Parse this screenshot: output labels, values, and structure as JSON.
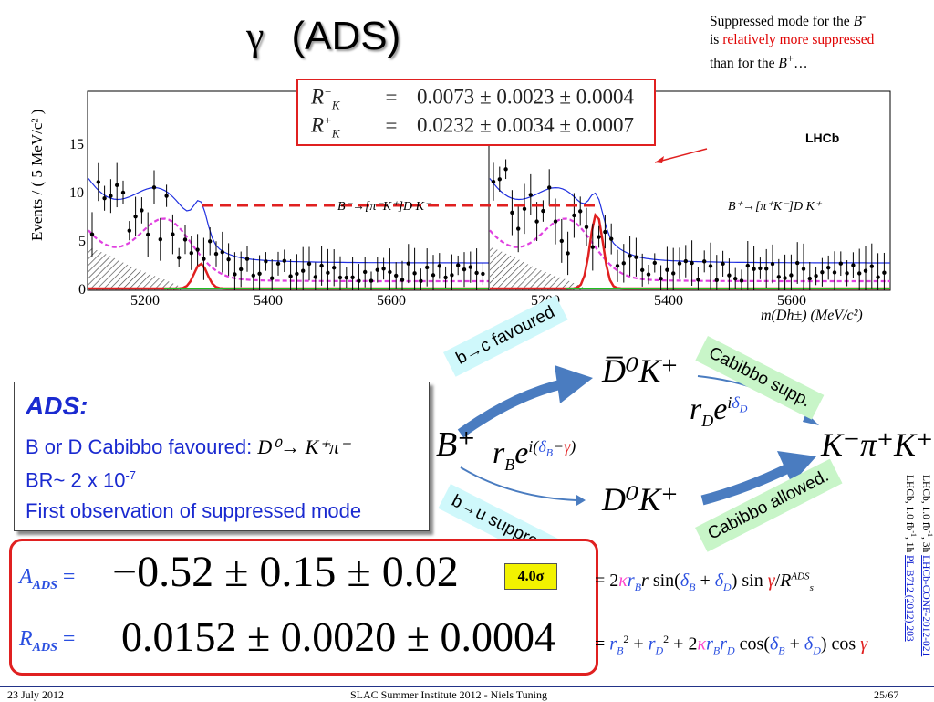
{
  "title": {
    "gamma": "γ",
    "text": "(ADS)"
  },
  "note": {
    "line1": "Suppressed mode for the ",
    "line1_var": "B",
    "line1_sup": "-",
    "line2_prefix": "is ",
    "line2_red": "relatively more suppressed",
    "line3_prefix": "than for the ",
    "line3_var": "B",
    "line3_sup": "+",
    "line3_suffix": "…"
  },
  "rk": {
    "row1_label": "R",
    "row1_sub": "K",
    "row1_sup": "−",
    "row1_eq": "=",
    "row1_value": "0.0073 ± 0.0023 ± 0.0004",
    "row2_label": "R",
    "row2_sub": "K",
    "row2_sup": "+",
    "row2_eq": "=",
    "row2_value": "0.0232 ± 0.0034 ± 0.0007"
  },
  "plot": {
    "ylabel": "Events / ( 5 MeV/c² )",
    "yticks": [
      "15",
      "10",
      "5",
      "0"
    ],
    "left_xticks": [
      "5200",
      "5400",
      "5600"
    ],
    "right_xticks": [
      "5200",
      "5400",
      "5600"
    ],
    "xlabel": "m(Dh±) (MeV/c²)",
    "left_decay": "B⁻→[π⁻K⁺]D K⁻",
    "right_decay": "B⁺→[π⁺K⁻]D K⁺",
    "lhcb": "LHCb",
    "colors": {
      "signal": "#e02020",
      "total": "#2030e0",
      "background": "#e040e0",
      "other": "#20c020"
    }
  },
  "diagram": {
    "favoured_tag": "b→c  favoured",
    "suppressed_tag": "b→u  suppressed",
    "cabibbo_supp_tag": "Cabibbo supp.",
    "cabibbo_allowed_tag": "Cabibbo allowed.",
    "dbar_k": "D̅⁰K⁺",
    "d_k": "D⁰K⁺",
    "b_plus": "B⁺",
    "final": "K⁻π⁺K⁺",
    "rd_amp": "r",
    "rd_sub": "D",
    "rd_e": "e",
    "rd_exp_i": "i",
    "rd_exp_delta": "δ",
    "rd_exp_sub": "D",
    "rb_amp": "r",
    "rb_sub": "B",
    "rb_e": "e",
    "rb_exp_i": "i(",
    "rb_exp_delta": "δ",
    "rb_exp_sub": "B",
    "rb_exp_minus": "−",
    "rb_exp_gamma": "γ",
    "rb_exp_close": ")"
  },
  "ads_box": {
    "heading": "ADS:",
    "line1": "B or D Cabibbo favoured: ",
    "line1_math": "D⁰→ K⁺π⁻",
    "line2": "BR~ 2 x 10",
    "line2_sup": "-7",
    "line3": "First observation of suppressed mode"
  },
  "formulas": {
    "a_label": "A",
    "a_sub": "ADS",
    "a_eq": "=",
    "a_value": "−0.52 ± 0.15 ± 0.02",
    "r_label": "R",
    "r_sub": "ADS",
    "r_eq": "=",
    "r_value": "0.0152 ± 0.0020 ± 0.0004",
    "sigma_badge": "4.0σ"
  },
  "formula_defs": {
    "a_def_prefix": "= 2",
    "a_def_kappa": "κ",
    "a_def_rb": "r",
    "a_def_rb_sub": "B",
    "a_def_r": "r",
    "a_def_sin": " sin(",
    "a_def_db": "δ",
    "a_def_db_sub": "B",
    "a_def_plus": " + ",
    "a_def_dd": "δ",
    "a_def_dd_sub": "D",
    "a_def_close": ") sin ",
    "a_def_gamma": "γ",
    "a_def_slash": "/",
    "a_def_R": "R",
    "a_def_R_sup": "ADS",
    "a_def_R_sub": "s",
    "r_def_prefix": "= ",
    "r_def_rb": "r",
    "r_def_rb_sub": "B",
    "r_def_sq": "2",
    "r_def_plus1": " + ",
    "r_def_rd": "r",
    "r_def_rd_sub": "D",
    "r_def_sq2": "2",
    "r_def_plus2": " + 2",
    "r_def_kappa": "κ",
    "r_def_rb2": "r",
    "r_def_rb2_sub": "B",
    "r_def_rd2": "r",
    "r_def_rd2_sub": "D",
    "r_def_cos": " cos(",
    "r_def_db": "δ",
    "r_def_db_sub": "B",
    "r_def_plus3": " + ",
    "r_def_dd": "δ",
    "r_def_dd_sub": "D",
    "r_def_close": ") cos ",
    "r_def_gamma": "γ"
  },
  "side_refs": {
    "ref1_prefix": "LHCb, 1.0 fb",
    "ref1_sup": "-1",
    "ref1_mid": ", 3h ",
    "ref1_link": "LHCb-CONF-2012-021",
    "ref2_prefix": "LHCb, 1.0 fb",
    "ref2_sup": "-1",
    "ref2_mid": ", 1h ",
    "ref2_link": "PL B712 (2012) 203"
  },
  "footer": {
    "date": "23 July 2012",
    "center": "SLAC Summer Institute 2012 - Niels Tuning",
    "page": "25/67"
  }
}
